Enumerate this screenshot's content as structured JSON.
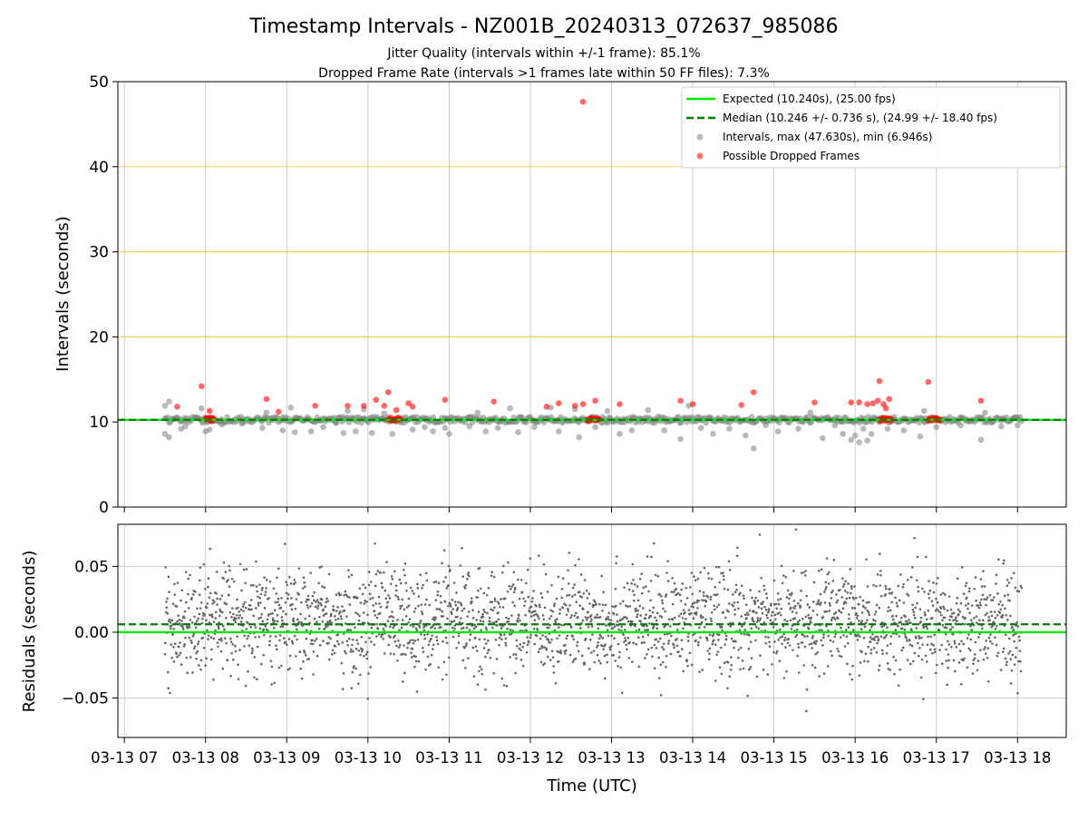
{
  "title": "Timestamp Intervals - NZ001B_20240313_072637_985086",
  "subtitle_1": "Jitter Quality (intervals within +/-1 frame): 85.1%",
  "subtitle_2": "Dropped Frame Rate (intervals >1 frames late within 50 FF files): 7.3%",
  "colors": {
    "expected": "#00ee00",
    "median": "#007f00",
    "intervals": "#808080",
    "dropped": "#ff0000",
    "ref_lines": "#f5c542",
    "grid": "#cccccc"
  },
  "chart_data": [
    {
      "type": "scatter",
      "ylabel": "Intervals (seconds)",
      "ylim": [
        0,
        50
      ],
      "yticks": [
        "0",
        "10",
        "20",
        "30",
        "40",
        "50"
      ],
      "xlim_hours": [
        6.92,
        18.6
      ],
      "reference_lines_y": [
        20,
        30,
        40
      ],
      "grid": true,
      "legend_position": "top-right",
      "legend": [
        "Expected (10.240s), (25.00 fps)",
        "Median (10.246 +/- 0.736 s), (24.99 +/- 18.40 fps)",
        "Intervals, max (47.630s), min (6.946s)",
        "Possible Dropped Frames"
      ],
      "expected_y": 10.24,
      "median_y": 10.246,
      "series": [
        {
          "name": "Intervals, max (47.630s), min (6.946s)",
          "points": [
            [
              7.5,
              11.9
            ],
            [
              7.55,
              12.4
            ],
            [
              7.5,
              8.6
            ],
            [
              7.55,
              8.2
            ],
            [
              7.7,
              9.2
            ],
            [
              7.75,
              9.5
            ],
            [
              7.95,
              11.6
            ],
            [
              8.0,
              8.9
            ],
            [
              8.05,
              9.1
            ],
            [
              8.2,
              9.7
            ],
            [
              8.45,
              9.8
            ],
            [
              8.7,
              9.3
            ],
            [
              8.75,
              11.1
            ],
            [
              8.95,
              9.0
            ],
            [
              9.05,
              11.7
            ],
            [
              9.1,
              8.8
            ],
            [
              9.3,
              8.9
            ],
            [
              9.45,
              9.4
            ],
            [
              9.6,
              9.9
            ],
            [
              9.7,
              8.7
            ],
            [
              9.75,
              11.3
            ],
            [
              9.85,
              8.9
            ],
            [
              9.95,
              11.5
            ],
            [
              10.05,
              8.7
            ],
            [
              10.2,
              11.0
            ],
            [
              10.3,
              8.6
            ],
            [
              10.55,
              9.1
            ],
            [
              10.7,
              9.4
            ],
            [
              10.8,
              8.9
            ],
            [
              10.95,
              9.3
            ],
            [
              11.0,
              8.6
            ],
            [
              11.25,
              9.5
            ],
            [
              11.35,
              11.1
            ],
            [
              11.45,
              8.9
            ],
            [
              11.6,
              9.3
            ],
            [
              11.75,
              11.6
            ],
            [
              11.85,
              8.8
            ],
            [
              12.05,
              9.4
            ],
            [
              12.25,
              11.7
            ],
            [
              12.35,
              8.9
            ],
            [
              12.55,
              11.5
            ],
            [
              12.6,
              8.2
            ],
            [
              12.8,
              9.4
            ],
            [
              12.95,
              11.3
            ],
            [
              13.1,
              8.6
            ],
            [
              13.25,
              9.0
            ],
            [
              13.45,
              11.4
            ],
            [
              13.65,
              9.0
            ],
            [
              13.85,
              8.0
            ],
            [
              13.95,
              11.9
            ],
            [
              14.1,
              9.3
            ],
            [
              14.25,
              8.6
            ],
            [
              14.45,
              9.2
            ],
            [
              14.65,
              8.4
            ],
            [
              14.75,
              6.9
            ],
            [
              14.9,
              9.6
            ],
            [
              15.05,
              8.9
            ],
            [
              15.3,
              9.2
            ],
            [
              15.45,
              11.1
            ],
            [
              15.6,
              8.1
            ],
            [
              15.75,
              9.6
            ],
            [
              15.85,
              8.6
            ],
            [
              15.95,
              7.9
            ],
            [
              16.0,
              8.4
            ],
            [
              16.05,
              7.6
            ],
            [
              16.1,
              9.2
            ],
            [
              16.15,
              7.8
            ],
            [
              16.2,
              8.6
            ],
            [
              16.4,
              9.2
            ],
            [
              16.6,
              9.0
            ],
            [
              16.8,
              8.3
            ],
            [
              16.85,
              11.3
            ],
            [
              17.0,
              9.4
            ],
            [
              17.3,
              9.6
            ],
            [
              17.55,
              7.9
            ],
            [
              17.6,
              11.1
            ],
            [
              17.8,
              9.5
            ],
            [
              18.0,
              9.6
            ]
          ],
          "baseline_band": {
            "x": [
              7.5,
              18.05
            ],
            "y": [
              9.9,
              10.6
            ]
          }
        },
        {
          "name": "Possible Dropped Frames",
          "points": [
            [
              12.65,
              47.63
            ],
            [
              7.65,
              11.8
            ],
            [
              7.95,
              14.2
            ],
            [
              8.05,
              11.3
            ],
            [
              8.75,
              12.7
            ],
            [
              8.9,
              11.2
            ],
            [
              9.35,
              11.9
            ],
            [
              9.75,
              11.9
            ],
            [
              9.95,
              11.9
            ],
            [
              10.1,
              12.6
            ],
            [
              10.2,
              11.9
            ],
            [
              10.25,
              13.5
            ],
            [
              10.35,
              11.4
            ],
            [
              10.5,
              12.2
            ],
            [
              10.55,
              11.8
            ],
            [
              10.95,
              12.6
            ],
            [
              11.55,
              12.4
            ],
            [
              12.2,
              11.8
            ],
            [
              12.35,
              12.2
            ],
            [
              12.55,
              11.9
            ],
            [
              12.65,
              12.1
            ],
            [
              12.8,
              12.5
            ],
            [
              13.1,
              12.1
            ],
            [
              13.85,
              12.5
            ],
            [
              14.0,
              12.1
            ],
            [
              14.6,
              12.0
            ],
            [
              14.75,
              13.5
            ],
            [
              15.5,
              12.3
            ],
            [
              15.95,
              12.3
            ],
            [
              16.05,
              12.3
            ],
            [
              16.15,
              12.1
            ],
            [
              16.22,
              12.2
            ],
            [
              16.28,
              12.5
            ],
            [
              16.3,
              14.8
            ],
            [
              16.35,
              12.1
            ],
            [
              16.38,
              11.6
            ],
            [
              16.42,
              12.7
            ],
            [
              16.9,
              14.7
            ],
            [
              17.55,
              12.5
            ]
          ],
          "clusters_at_baseline": [
            [
              8.0,
              8.1
            ],
            [
              10.25,
              10.4
            ],
            [
              12.7,
              12.85
            ],
            [
              16.3,
              16.45
            ],
            [
              16.9,
              17.05
            ]
          ]
        }
      ]
    },
    {
      "type": "scatter",
      "ylabel": "Residuals (seconds)",
      "xlabel": "Time (UTC)",
      "ylim": [
        -0.08,
        0.082
      ],
      "yticks": [
        "−0.05",
        "0.00",
        "0.05"
      ],
      "ytick_values": [
        -0.05,
        0,
        0.05
      ],
      "xlim_hours": [
        6.92,
        18.6
      ],
      "xticks": [
        "03-13 07",
        "03-13 08",
        "03-13 09",
        "03-13 10",
        "03-13 11",
        "03-13 12",
        "03-13 13",
        "03-13 14",
        "03-13 15",
        "03-13 16",
        "03-13 17",
        "03-13 18"
      ],
      "xtick_hours": [
        7,
        8,
        9,
        10,
        11,
        12,
        13,
        14,
        15,
        16,
        17,
        18
      ],
      "grid": true,
      "expected_residual": 0.0,
      "median_residual": 0.006,
      "residual_range_x": [
        7.5,
        18.05
      ],
      "residual_spread": 0.025,
      "residual_count": 2600
    }
  ]
}
